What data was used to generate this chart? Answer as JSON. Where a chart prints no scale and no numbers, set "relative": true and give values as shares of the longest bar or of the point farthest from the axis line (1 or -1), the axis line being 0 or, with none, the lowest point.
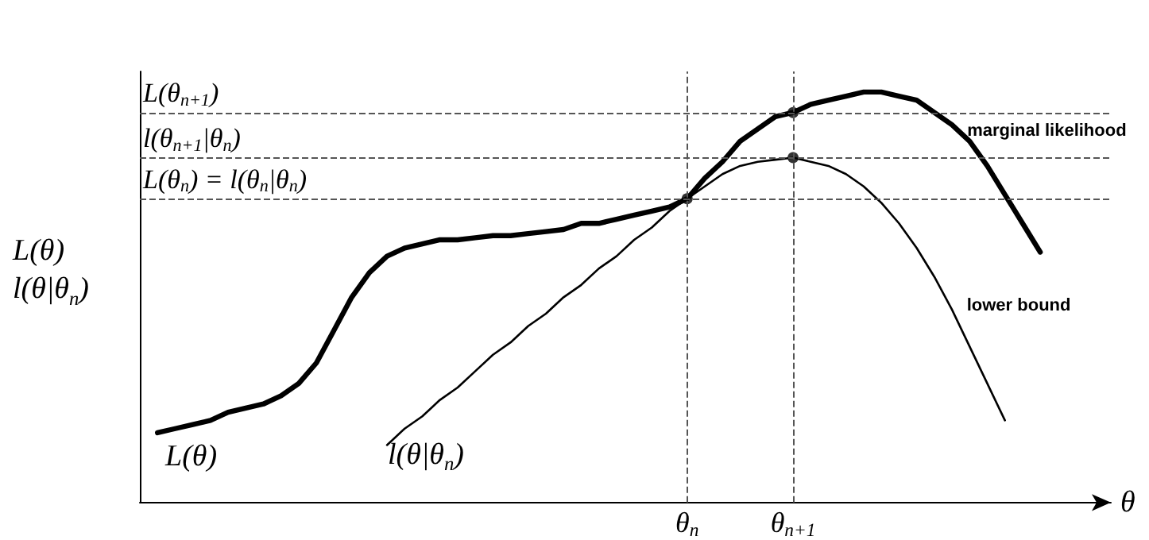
{
  "chart_data": {
    "type": "line",
    "relative": true,
    "xlabel": "θ",
    "ylabel": "L(θ)\nl(θ|θ$_{n}$)",
    "categories": [
      null,
      null,
      null,
      null,
      null,
      null,
      null,
      null,
      null,
      null,
      null,
      null,
      null,
      null,
      null,
      null,
      null,
      null,
      null,
      null,
      null,
      null,
      null,
      null,
      null,
      null,
      null,
      null,
      null,
      null,
      null,
      "θ$_{n}$",
      null,
      null,
      null,
      null,
      null,
      "θ$_{n+1}$",
      null,
      null,
      null,
      null,
      null,
      null,
      null,
      null,
      null,
      null,
      null,
      null,
      null,
      null,
      null,
      null,
      null,
      null
    ],
    "series": [
      {
        "name": "marginal likelihood",
        "color": "#000000",
        "values": [
          null,
          0.17,
          0.18,
          0.19,
          0.2,
          0.22,
          0.23,
          0.24,
          0.26,
          0.29,
          0.34,
          0.42,
          0.5,
          0.56,
          0.6,
          0.62,
          0.63,
          0.64,
          0.64,
          0.645,
          0.65,
          0.65,
          0.655,
          0.66,
          0.665,
          0.68,
          0.68,
          0.69,
          0.7,
          0.71,
          0.72,
          0.74,
          0.79,
          0.83,
          0.88,
          0.91,
          0.94,
          0.95,
          0.97,
          0.98,
          0.99,
          1,
          1,
          0.99,
          0.98,
          0.95,
          0.92,
          0.88,
          0.82,
          0.75,
          0.68,
          0.61,
          null,
          null,
          null,
          null
        ]
      },
      {
        "name": "lower bound",
        "color": "#000000",
        "values": [
          null,
          null,
          null,
          null,
          null,
          null,
          null,
          null,
          null,
          null,
          null,
          null,
          null,
          null,
          0.14,
          0.18,
          0.21,
          0.25,
          0.28,
          0.32,
          0.36,
          0.39,
          0.43,
          0.46,
          0.5,
          0.53,
          0.57,
          0.6,
          0.64,
          0.67,
          0.71,
          0.74,
          0.77,
          0.8,
          0.82,
          0.83,
          0.835,
          0.84,
          0.83,
          0.82,
          0.8,
          0.77,
          0.73,
          0.68,
          0.62,
          0.55,
          0.47,
          0.38,
          0.29,
          0.2,
          null,
          null,
          null,
          null,
          null,
          null
        ]
      },
      {
        "type": "scatter",
        "marker": "circle",
        "color": "#000000",
        "x": [
          "θ$_{n}$",
          "θ$_{n+1}$",
          "θ$_{n+1}$"
        ],
        "values": [
          0.74,
          0.95,
          0.84
        ]
      }
    ],
    "ref_lines": [
      {
        "axis": "y",
        "value": 0.95,
        "label": "L(θ$_{n+1}$)",
        "line_style": "dashed",
        "color": "#555555"
      },
      {
        "axis": "y",
        "value": 0.84,
        "label": "l(θ$_{n+1}$|θ$_{n}$)",
        "line_style": "dashed",
        "color": "#555555"
      },
      {
        "axis": "y",
        "value": 0.74,
        "label": "L(θ$_{n}$) = l(θ$_{n}$|θ$_{n}$)",
        "line_style": "dashed",
        "color": "#555555"
      },
      {
        "axis": "x",
        "value": "θ$_{n}$",
        "line_style": "dashed",
        "color": "#555555"
      },
      {
        "axis": "x",
        "value": "θ$_{n+1}$",
        "line_style": "dashed",
        "color": "#555555"
      }
    ],
    "annotations": [
      "L(θ)",
      "l(θ|θ$_{n}$)"
    ],
    "marker": "none",
    "line_style": "solid",
    "legend": false,
    "grid": false
  }
}
